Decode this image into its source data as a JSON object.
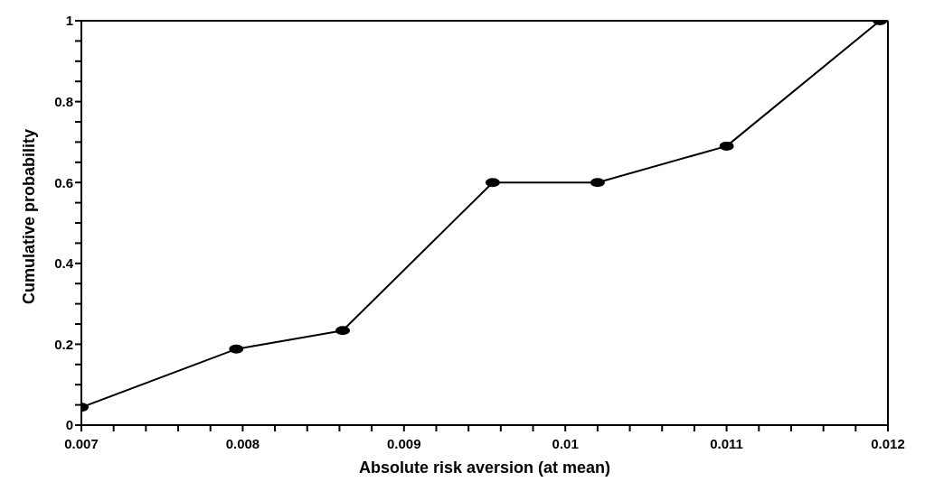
{
  "chart_data": {
    "type": "line",
    "xlabel": "Absolute risk aversion (at mean)",
    "ylabel": "Cumulative probability",
    "x": [
      0.007,
      0.00796,
      0.00862,
      0.00955,
      0.0102,
      0.011,
      0.01195
    ],
    "values": [
      0.044,
      0.188,
      0.234,
      0.6,
      0.6,
      0.69,
      1
    ],
    "color": "#000000",
    "marker": "circle",
    "line_style": "solid",
    "grid": false,
    "legend": false,
    "xlim": [
      0.007,
      0.012
    ],
    "xticks": [
      0.007,
      {
        "value": 0.0072,
        "label": null
      },
      {
        "value": 0.0074,
        "label": null
      },
      {
        "value": 0.0076,
        "label": null
      },
      {
        "value": 0.0078,
        "label": null
      },
      0.008,
      {
        "value": 0.0082,
        "label": null
      },
      {
        "value": 0.0084,
        "label": null
      },
      {
        "value": 0.0086,
        "label": null
      },
      {
        "value": 0.0088,
        "label": null
      },
      0.009,
      {
        "value": 0.0092,
        "label": null
      },
      {
        "value": 0.0094,
        "label": null
      },
      {
        "value": 0.0096,
        "label": null
      },
      {
        "value": 0.0098,
        "label": null
      },
      0.01,
      {
        "value": 0.0102,
        "label": null
      },
      {
        "value": 0.0104,
        "label": null
      },
      {
        "value": 0.0106,
        "label": null
      },
      {
        "value": 0.0108,
        "label": null
      },
      0.011,
      {
        "value": 0.0112,
        "label": null
      },
      {
        "value": 0.0114,
        "label": null
      },
      {
        "value": 0.0116,
        "label": null
      },
      {
        "value": 0.0118,
        "label": null
      },
      0.012
    ],
    "ylim": [
      0,
      1
    ],
    "yticks": [
      0,
      {
        "value": 0.05,
        "label": null
      },
      {
        "value": 0.1,
        "label": null
      },
      {
        "value": 0.15,
        "label": null
      },
      0.2,
      {
        "value": 0.25,
        "label": null
      },
      {
        "value": 0.3,
        "label": null
      },
      {
        "value": 0.35,
        "label": null
      },
      0.4,
      {
        "value": 0.45,
        "label": null
      },
      {
        "value": 0.5,
        "label": null
      },
      {
        "value": 0.55,
        "label": null
      },
      0.6,
      {
        "value": 0.65,
        "label": null
      },
      {
        "value": 0.7,
        "label": null
      },
      {
        "value": 0.75,
        "label": null
      },
      0.8,
      {
        "value": 0.85,
        "label": null
      },
      {
        "value": 0.9,
        "label": null
      },
      {
        "value": 0.95,
        "label": null
      },
      1
    ]
  }
}
